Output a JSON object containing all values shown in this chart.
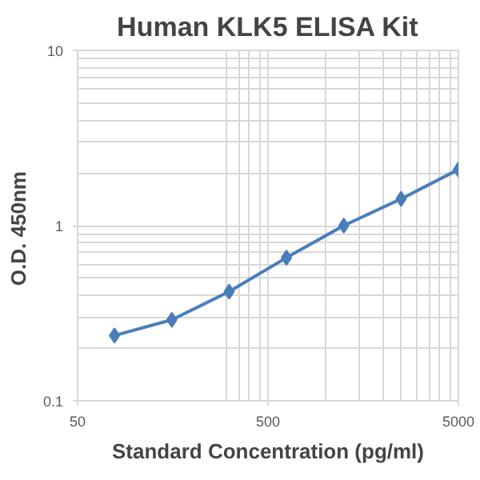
{
  "chart_data": {
    "type": "line",
    "title": "Human KLK5 ELISA Kit",
    "xlabel": "Standard Concentration (pg/ml)",
    "ylabel": "O.D.  450nm",
    "x": [
      78.125,
      156.25,
      312.5,
      625,
      1250,
      2500,
      5000
    ],
    "series": [
      {
        "color": "#4a7ebb",
        "values": [
          0.236,
          0.29,
          0.42,
          0.656,
          1.0,
          1.42,
          2.09
        ]
      }
    ],
    "log": "xy",
    "xlim": [
      50,
      5000
    ],
    "ylim": [
      0.1,
      10
    ],
    "xticks": [
      50,
      500,
      5000
    ],
    "yticks": [
      0.1,
      1,
      10
    ],
    "grid": true,
    "marker": "diamond",
    "line_style": "solid"
  }
}
